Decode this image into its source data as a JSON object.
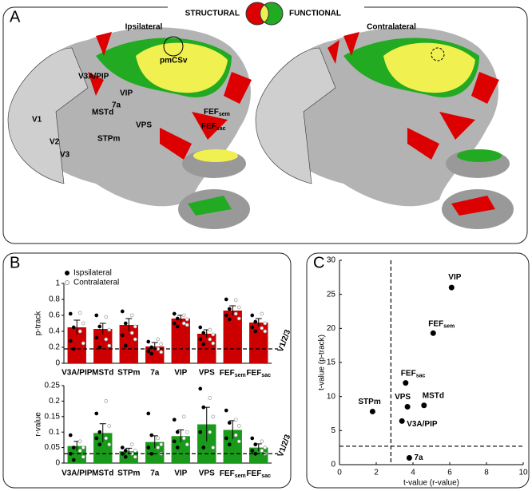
{
  "panel_a": {
    "letter": "A",
    "legend_left": "STRUCTURAL",
    "legend_right": "FUNCTIONAL",
    "maps": [
      "Ipsilateral",
      "Contralateral"
    ],
    "regions": [
      "V1",
      "V2",
      "V3",
      "V3A/PIP",
      "VIP",
      "7a",
      "MSTd",
      "VPS",
      "STPm",
      {
        "text": "FEF",
        "sub": "sem"
      },
      {
        "text": "FEF",
        "sub": "sac"
      },
      "pmCSv"
    ]
  },
  "panel_b": {
    "letter": "B"
  },
  "panel_c": {
    "letter": "C"
  },
  "chart_data": [
    {
      "type": "bar",
      "ylabel": "p-track",
      "color": "#cc0000",
      "categories": [
        "V3A/PIP",
        "MSTd",
        "STPm",
        "7a",
        "VIP",
        "VPS",
        {
          "text": "FEF",
          "sub": "sem"
        },
        {
          "text": "FEF",
          "sub": "sac"
        }
      ],
      "values": [
        0.45,
        0.43,
        0.48,
        0.21,
        0.56,
        0.37,
        0.66,
        0.51
      ],
      "errors": [
        0.09,
        0.07,
        0.08,
        0.05,
        0.04,
        0.05,
        0.06,
        0.05
      ],
      "series": [
        {
          "name": "Ispsilateral",
          "values": [
            [
              0.62,
              0.45,
              0.28,
              0.18
            ],
            [
              0.6,
              0.46,
              0.32,
              0.2
            ],
            [
              0.65,
              0.5,
              0.35,
              0.22
            ],
            [
              0.27,
              0.2,
              0.15,
              0.12
            ],
            [
              0.62,
              0.56,
              0.5,
              0.46
            ],
            [
              0.45,
              0.38,
              0.3,
              0.24
            ],
            [
              0.8,
              0.68,
              0.6,
              0.55
            ],
            [
              0.6,
              0.52,
              0.45,
              0.4
            ]
          ]
        },
        {
          "name": "Contralateral",
          "values": [
            [
              0.63,
              0.5,
              0.4,
              0.25
            ],
            [
              0.58,
              0.42,
              0.3,
              0.22
            ],
            [
              0.6,
              0.46,
              0.38,
              0.3
            ],
            [
              0.3,
              0.24,
              0.18,
              0.14
            ],
            [
              0.6,
              0.55,
              0.5,
              0.48
            ],
            [
              0.42,
              0.36,
              0.3,
              0.25
            ],
            [
              0.79,
              0.7,
              0.62,
              0.56
            ],
            [
              0.62,
              0.5,
              0.44,
              0.4
            ]
          ]
        }
      ],
      "threshold": 0.18,
      "threshold_label": "V1/2/3",
      "ylim": [
        0,
        1
      ],
      "yticks": [
        0,
        0.2,
        0.4,
        0.6,
        0.8,
        1
      ]
    },
    {
      "type": "bar",
      "ylabel": "r-value",
      "color": "#1a9a1a",
      "categories": [
        "V3A/PIP",
        "MSTd",
        "STPm",
        "7a",
        "VIP",
        "VPS",
        {
          "text": "FEF",
          "sub": "sem"
        },
        {
          "text": "FEF",
          "sub": "sac"
        }
      ],
      "values": [
        0.055,
        0.097,
        0.038,
        0.068,
        0.087,
        0.125,
        0.107,
        0.05
      ],
      "errors": [
        0.015,
        0.03,
        0.01,
        0.02,
        0.02,
        0.055,
        0.03,
        0.012
      ],
      "series": [
        {
          "name": "Ispsilateral",
          "values": [
            [
              0.09,
              0.05,
              0.03,
              0.01
            ],
            [
              0.16,
              0.1,
              0.08,
              0.06
            ],
            [
              0.05,
              0.04,
              0.03,
              0.02
            ],
            [
              0.16,
              0.09,
              0.05,
              0.03
            ],
            [
              0.14,
              0.1,
              0.07,
              0.05
            ],
            [
              0.24,
              0.18,
              0.1,
              0.05
            ],
            [
              0.17,
              0.13,
              0.08,
              0.06
            ],
            [
              0.08,
              0.06,
              0.04,
              0.03
            ]
          ]
        },
        {
          "name": "Contralateral",
          "values": [
            [
              0.07,
              0.05,
              0.04,
              0.02
            ],
            [
              0.2,
              0.12,
              0.08,
              0.06
            ],
            [
              0.06,
              0.04,
              0.03,
              0.02
            ],
            [
              0.08,
              0.06,
              0.05,
              0.03
            ],
            [
              0.15,
              0.1,
              0.08,
              0.06
            ],
            [
              0.21,
              0.15,
              0.1,
              0.05
            ],
            [
              0.14,
              0.12,
              0.09,
              0.07
            ],
            [
              0.07,
              0.05,
              0.04,
              0.03
            ]
          ]
        }
      ],
      "threshold": 0.03,
      "threshold_label": "V1/2/3",
      "ylim": [
        0,
        0.25
      ],
      "yticks": [
        0,
        0.05,
        0.1,
        0.15,
        0.2,
        0.25
      ]
    },
    {
      "type": "scatter",
      "xlabel": "t-value (r-value)",
      "ylabel": "t-value (p-track)",
      "color": "#000000",
      "categories": [
        "VIP",
        {
          "text": "FEF",
          "sub": "sem"
        },
        {
          "text": "FEF",
          "sub": "sac"
        },
        "STPm",
        "VPS",
        "MSTd",
        "V3A/PIP",
        "7a"
      ],
      "x": [
        6.1,
        5.1,
        3.6,
        1.8,
        3.7,
        4.6,
        3.4,
        3.8
      ],
      "values": [
        26,
        19.3,
        12,
        7.8,
        8.5,
        8.7,
        6.4,
        1
      ],
      "x_threshold": 2.8,
      "y_threshold": 2.7,
      "xlim": [
        0,
        10
      ],
      "xticks": [
        0,
        2,
        4,
        6,
        8,
        10
      ],
      "ylim": [
        0,
        30
      ],
      "yticks": [
        0,
        5,
        10,
        15,
        20,
        25,
        30
      ]
    }
  ]
}
